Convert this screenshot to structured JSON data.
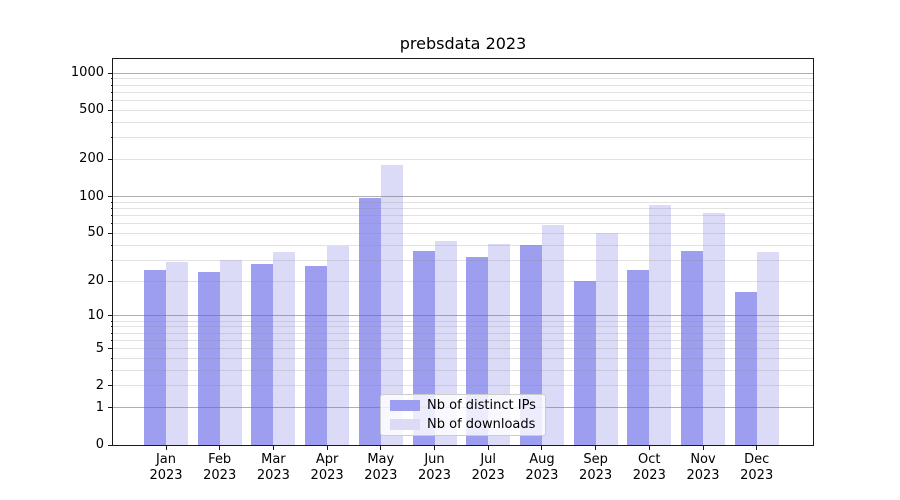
{
  "chart_data": {
    "type": "bar",
    "title": "prebsdata 2023",
    "categories": [
      {
        "month": "Jan",
        "year": "2023"
      },
      {
        "month": "Feb",
        "year": "2023"
      },
      {
        "month": "Mar",
        "year": "2023"
      },
      {
        "month": "Apr",
        "year": "2023"
      },
      {
        "month": "May",
        "year": "2023"
      },
      {
        "month": "Jun",
        "year": "2023"
      },
      {
        "month": "Jul",
        "year": "2023"
      },
      {
        "month": "Aug",
        "year": "2023"
      },
      {
        "month": "Sep",
        "year": "2023"
      },
      {
        "month": "Oct",
        "year": "2023"
      },
      {
        "month": "Nov",
        "year": "2023"
      },
      {
        "month": "Dec",
        "year": "2023"
      }
    ],
    "series": [
      {
        "name": "Nb of distinct IPs",
        "color": "#9e9ef0",
        "values": [
          25,
          24,
          28,
          27,
          97,
          36,
          32,
          40,
          20,
          25,
          36,
          16
        ]
      },
      {
        "name": "Nb of downloads",
        "color": "#dbdbf8",
        "values": [
          29,
          30,
          35,
          39,
          180,
          43,
          41,
          58,
          50,
          85,
          73,
          35
        ]
      }
    ],
    "y_axis": {
      "scale": "log1p",
      "tick_values": [
        0,
        1,
        2,
        5,
        10,
        20,
        50,
        100,
        200,
        500,
        1000
      ],
      "major_grid_values": [
        1,
        10,
        100,
        1000
      ],
      "minor_grid_bases": [
        1,
        10,
        100
      ],
      "ylim": [
        0,
        1320
      ]
    },
    "legend_position": "lower center",
    "grid": true,
    "colors": {
      "major_grid": "#b1b1b1",
      "minor_grid": "#e2e2e2",
      "spine": "#1a1a1a",
      "text": "#000000",
      "background": "#ffffff"
    }
  }
}
